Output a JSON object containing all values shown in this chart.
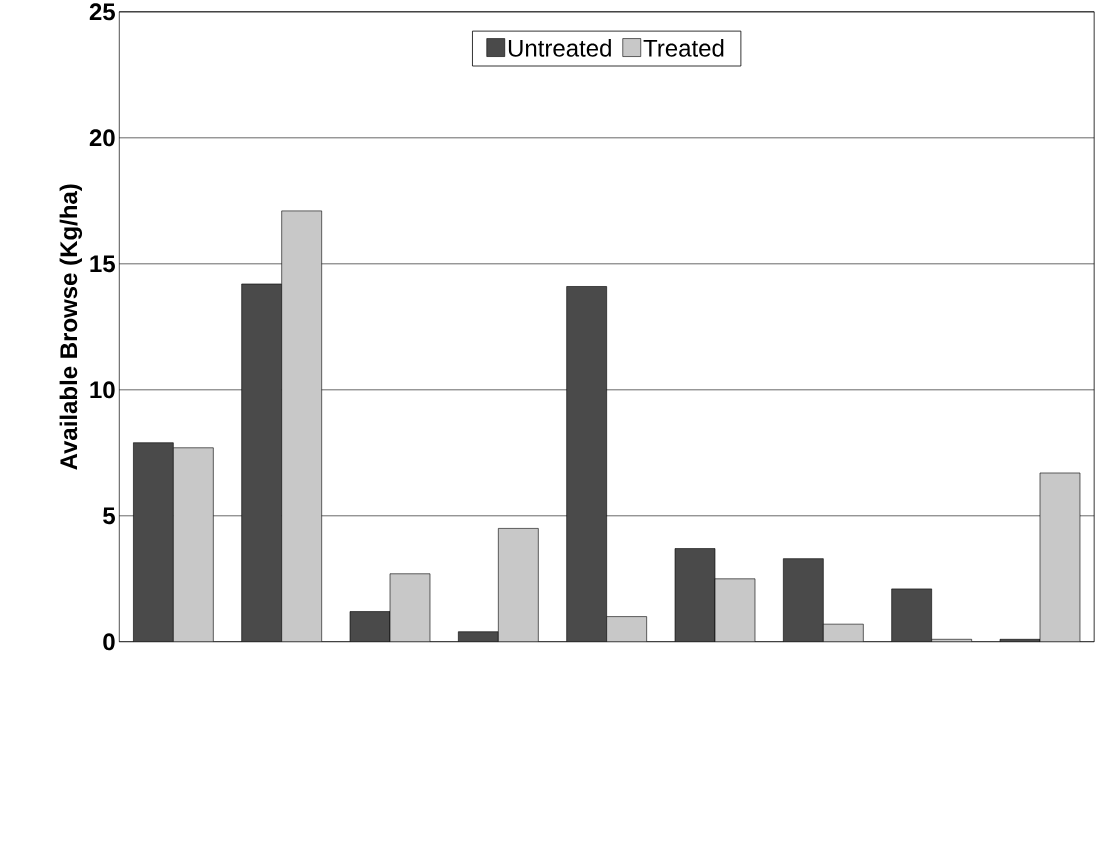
{
  "chart_data": {
    "type": "bar",
    "ylabel": "Available Browse (Kg/ha)",
    "categories": [
      null,
      null,
      null,
      null,
      null,
      null,
      null,
      null,
      null
    ],
    "series": [
      {
        "name": "Untreated",
        "color": "#4a4a4a",
        "values": [
          7.9,
          14.2,
          1.2,
          0.4,
          14.1,
          3.7,
          3.3,
          2.1,
          0.1
        ]
      },
      {
        "name": "Treated",
        "color": "#c8c8c8",
        "values": [
          7.7,
          17.1,
          2.7,
          4.5,
          1.0,
          2.5,
          0.7,
          0.1,
          6.7
        ]
      }
    ],
    "ylim": [
      0,
      25
    ],
    "yticks": [
      0,
      5,
      10,
      15,
      20,
      25
    ],
    "grid": "y",
    "legend": "top",
    "tick_labels": "y"
  }
}
